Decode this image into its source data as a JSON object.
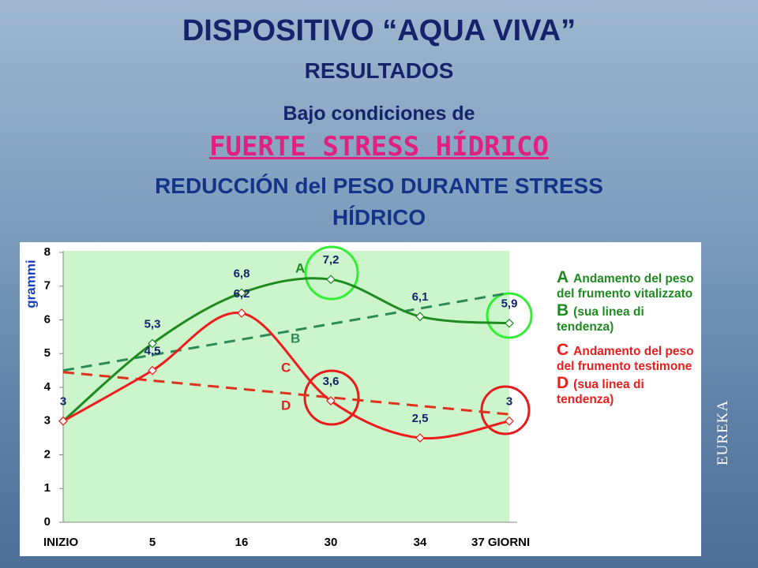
{
  "header": {
    "title": "DISPOSITIVO “AQUA VIVA”",
    "subtitle": "RESULTADOS",
    "condition_intro": "Bajo condiciones de",
    "condition": "FUERTE STRESS HÍDRICO",
    "heading": "REDUCCIÓN del PESO DURANTE STRESS HÍDRICO"
  },
  "watermark": "EUREKA",
  "chart_data": {
    "type": "line",
    "y_label": "grammi",
    "categories": [
      "INIZIO",
      "5",
      "16",
      "30",
      "34",
      "37 GIORNI"
    ],
    "ylim": [
      0,
      8
    ],
    "yticks": [
      0,
      1,
      2,
      3,
      4,
      5,
      6,
      7,
      8
    ],
    "series": [
      {
        "name": "A",
        "color": "#1f8a1f",
        "values": [
          3,
          5.3,
          6.8,
          7.2,
          6.1,
          5.9
        ],
        "value_labels": [
          "3",
          "5,3",
          "6,8",
          "7,2",
          "6,1",
          "5,9"
        ]
      },
      {
        "name": "C",
        "color": "#ee1c1c",
        "values": [
          3,
          4.5,
          6.2,
          3.6,
          2.5,
          3
        ],
        "value_labels": [
          null,
          "4,5",
          "6,2",
          "3,6",
          "2,5",
          "3"
        ]
      }
    ],
    "trendlines": [
      {
        "name": "B",
        "color": "#2e8b57",
        "start": 4.5,
        "end": 6.8
      },
      {
        "name": "D",
        "color": "#e0301e",
        "start": 4.45,
        "end": 3.2
      }
    ],
    "legend": [
      {
        "key": "A",
        "text": "Andamento del peso del frumento vitalizzato",
        "color": "#1f8a1f"
      },
      {
        "key": "B",
        "text": "(sua linea di tendenza)",
        "color": "#1f8a1f"
      },
      {
        "key": "C",
        "text": "Andamento del peso del frumento testimone",
        "color": "#ee1c1c"
      },
      {
        "key": "D",
        "text": "(sua linea di tendenza)",
        "color": "#ee1c1c"
      }
    ]
  }
}
